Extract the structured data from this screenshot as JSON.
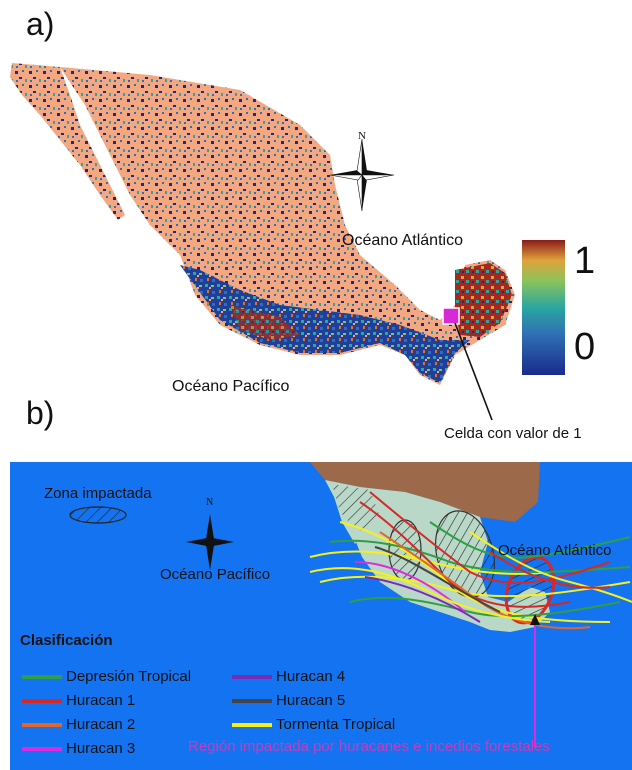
{
  "panel_a": {
    "label": "a)",
    "ocean_atlantic": "Océano Atlántico",
    "ocean_pacific": "Océano Pacífico",
    "north": "N",
    "colorbar_max": "1",
    "colorbar_min": "0",
    "callout": "Celda con valor de 1",
    "colors": {
      "mexico_base": "#f4a882",
      "low": "#1a2b8c",
      "mid": "#2aa7a0",
      "high": "#8b1a1a",
      "highlight": "#d62ad6"
    }
  },
  "panel_b": {
    "label": "b)",
    "impacted_zone": "Zona impactada",
    "ocean_pacific": "Océano Pacífico",
    "ocean_atlantic": "Océano Atlántico",
    "north": "N",
    "legend_title": "Clasificación",
    "legend": [
      {
        "label": "Depresión Tropical",
        "color": "#2ea043"
      },
      {
        "label": "Huracan 1",
        "color": "#d62828"
      },
      {
        "label": "Huracan 2",
        "color": "#e2662b"
      },
      {
        "label": "Huracan 3",
        "color": "#e02ae0"
      },
      {
        "label": "Huracan 4",
        "color": "#7a2ab8"
      },
      {
        "label": "Huracan 5",
        "color": "#444444"
      },
      {
        "label": "Tormenta Tropical",
        "color": "#f4f21a"
      }
    ],
    "region_note": "Región  impactada por huracanes e incedios forestales",
    "colors": {
      "ocean": "#1473f0",
      "land_north": "#9c6a4a",
      "mexico": "#b9d8c8"
    }
  }
}
